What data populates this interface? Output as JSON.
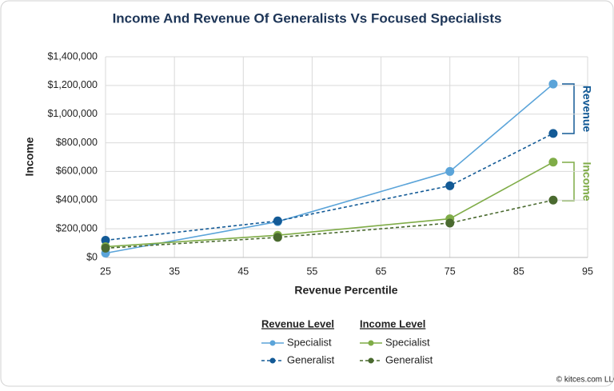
{
  "chart_data": {
    "type": "line",
    "title": "Income And Revenue Of Generalists Vs Focused Specialists",
    "x_label": "Revenue Percentile",
    "y_label": "Income",
    "x": [
      25,
      50,
      75,
      90
    ],
    "xlim": [
      25,
      95
    ],
    "xticks": [
      25,
      35,
      45,
      55,
      65,
      75,
      85,
      95
    ],
    "ylim": [
      0,
      1400000
    ],
    "yticks": [
      {
        "value": 0,
        "label": "$0"
      },
      {
        "value": 200000,
        "label": "$200,000"
      },
      {
        "value": 400000,
        "label": "$400,000"
      },
      {
        "value": 600000,
        "label": "$600,000"
      },
      {
        "value": 800000,
        "label": "$800,000"
      },
      {
        "value": 1000000,
        "label": "$1,000,000"
      },
      {
        "value": 1200000,
        "label": "$1,200,000"
      },
      {
        "value": 1400000,
        "label": "$1,400,000"
      }
    ],
    "grid": true,
    "legend_groups": [
      {
        "title": "Revenue Level"
      },
      {
        "title": "Income Level"
      }
    ],
    "series": [
      {
        "name": "Specialist",
        "color": "#5ba4d9",
        "dashed": false,
        "values": [
          30000,
          250000,
          600000,
          1210000
        ]
      },
      {
        "name": "Generalist",
        "color": "#135a96",
        "dashed": true,
        "values": [
          120000,
          255000,
          500000,
          865000
        ]
      },
      {
        "name": "Specialist",
        "color": "#7fac47",
        "dashed": false,
        "values": [
          75000,
          155000,
          270000,
          665000
        ]
      },
      {
        "name": "Generalist",
        "color": "#4a6a2f",
        "dashed": true,
        "values": [
          65000,
          140000,
          240000,
          400000
        ]
      }
    ],
    "annotations": [
      {
        "text": "Revenue",
        "color": "#135a96"
      },
      {
        "text": "Income",
        "color": "#7fac47"
      }
    ],
    "footer": "© kitces.com LLC"
  }
}
